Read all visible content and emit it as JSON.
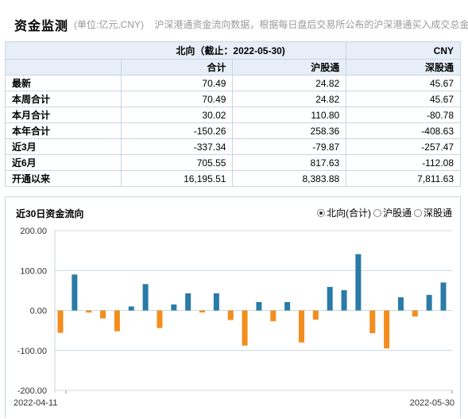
{
  "header": {
    "title": "资金监测",
    "unit": "(单位:亿元,CNY)",
    "description": "沪深港通资金流向数据，根据每日盘后交易所公布的沪深港通买入成交总金额"
  },
  "table": {
    "direction_label": "北向（截止：2022-05-30)",
    "currency": "CNY",
    "columns": [
      "合计",
      "沪股通",
      "深股通"
    ],
    "rows": [
      {
        "label": "最新",
        "values": [
          "70.49",
          "24.82",
          "45.67"
        ]
      },
      {
        "label": "本周合计",
        "values": [
          "70.49",
          "24.82",
          "45.67"
        ]
      },
      {
        "label": "本月合计",
        "values": [
          "30.02",
          "110.80",
          "-80.78"
        ]
      },
      {
        "label": "本年合计",
        "values": [
          "-150.26",
          "258.36",
          "-408.63"
        ]
      },
      {
        "label": "近3月",
        "values": [
          "-337.34",
          "-79.87",
          "-257.47"
        ]
      },
      {
        "label": "近6月",
        "values": [
          "705.55",
          "817.63",
          "-112.08"
        ]
      },
      {
        "label": "开通以来",
        "values": [
          "16,195.51",
          "8,383.88",
          "7,811.63"
        ]
      }
    ]
  },
  "chart": {
    "title": "近30日资金流向",
    "options": [
      {
        "label": "北向(合计)",
        "selected": true
      },
      {
        "label": "沪股通",
        "selected": false
      },
      {
        "label": "深股通",
        "selected": false
      }
    ],
    "colors": {
      "positive": "#2a7ba6",
      "negative": "#f28d1e",
      "grid": "#ccd6e0"
    }
  },
  "chart_data": {
    "type": "bar",
    "ylim": [
      -200,
      200
    ],
    "y_ticks": [
      "200.00",
      "100.00",
      "0.00",
      "-100.00",
      "-200.00"
    ],
    "x_labels": [
      "2022-04-11",
      "2022-05-30"
    ],
    "values": [
      -56,
      90,
      -5,
      -20,
      -52,
      10,
      66,
      -44,
      15,
      43,
      -5,
      43,
      -24,
      -88,
      21,
      -27,
      21,
      -80,
      -23,
      59,
      51,
      141,
      -57,
      -95,
      33,
      -15,
      39,
      70
    ]
  }
}
